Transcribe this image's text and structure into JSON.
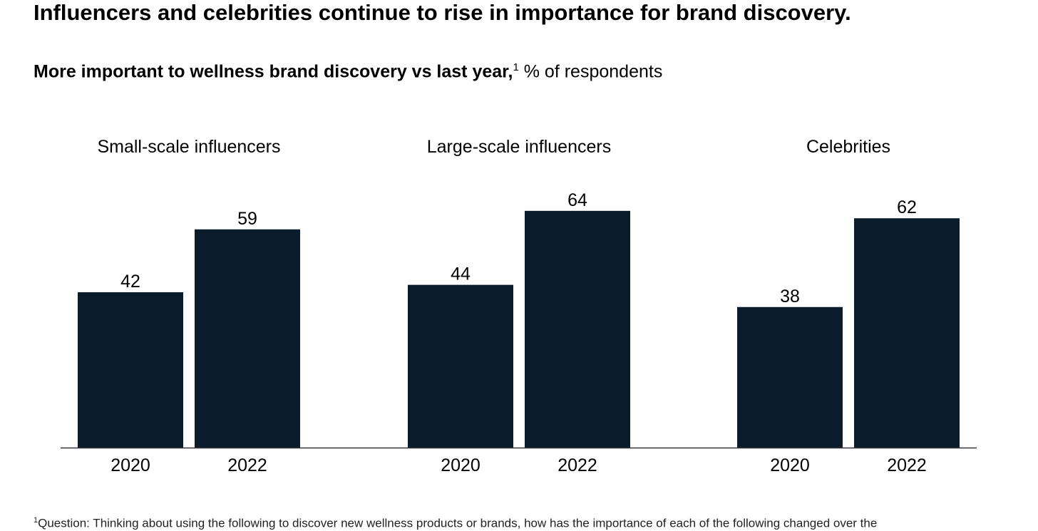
{
  "title": "Influencers and celebrities continue to rise in importance for brand discovery.",
  "subtitle": {
    "bold": "More important to wellness brand discovery vs last year,",
    "footnote_marker": "1",
    "unit": " % of respondents"
  },
  "footnote": {
    "marker": "1",
    "text": "Question: Thinking about using the following to discover new wellness products or brands, how has the importance of each of the following changed over the"
  },
  "chart_data": {
    "type": "bar",
    "bar_color": "#0a1c2c",
    "ylim": [
      0,
      100
    ],
    "grid": false,
    "groups": [
      {
        "label": "Small-scale influencers",
        "categories": [
          "2020",
          "2022"
        ],
        "values": [
          42,
          59
        ]
      },
      {
        "label": "Large-scale influencers",
        "categories": [
          "2020",
          "2022"
        ],
        "values": [
          44,
          64
        ]
      },
      {
        "label": "Celebrities",
        "categories": [
          "2020",
          "2022"
        ],
        "values": [
          38,
          62
        ]
      }
    ]
  }
}
